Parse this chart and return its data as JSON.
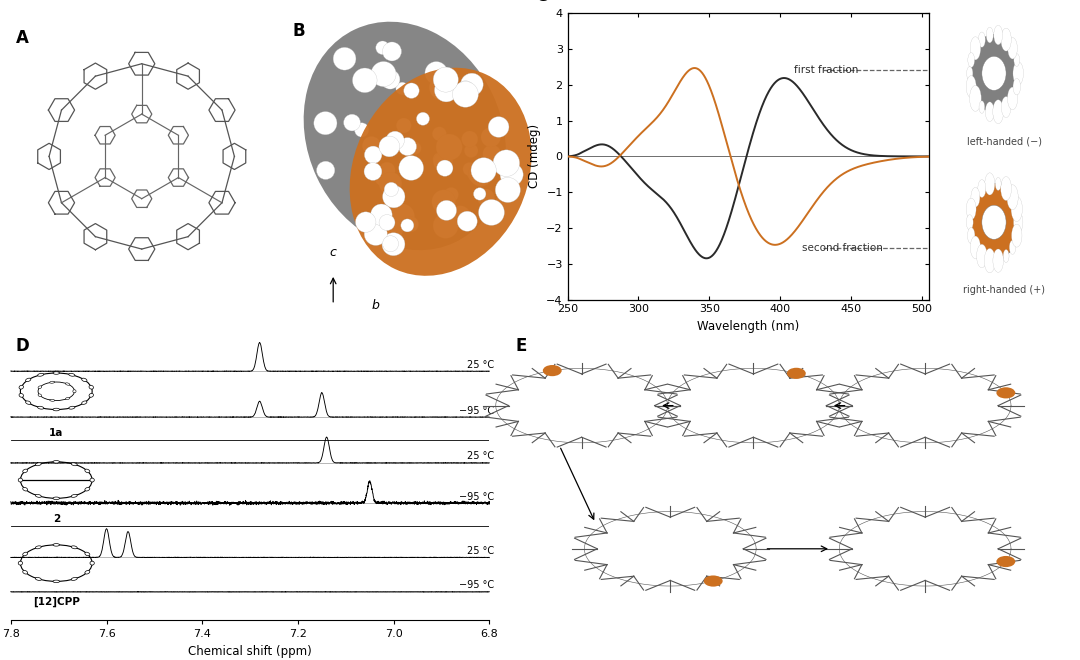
{
  "background_color": "#ffffff",
  "panel_labels": [
    "A",
    "B",
    "C",
    "D",
    "E"
  ],
  "panel_label_fontsize": 12,
  "panel_label_weight": "bold",
  "cd_xlabel": "Wavelength (nm)",
  "cd_ylabel": "CD (mdeg)",
  "cd_xlim": [
    250,
    505
  ],
  "cd_ylim": [
    -4,
    4
  ],
  "cd_yticks": [
    -4,
    -3,
    -2,
    -1,
    0,
    1,
    2,
    3,
    4
  ],
  "cd_xticks": [
    250,
    300,
    350,
    400,
    450,
    500
  ],
  "first_fraction_label": "first fraction",
  "second_fraction_label": "second fraction",
  "left_handed_label": "left-handed (−)",
  "right_handed_label": "right-handed (+)",
  "first_fraction_color": "#2a2a2a",
  "second_fraction_color": "#cc7020",
  "nmr_xlabel": "Chemical shift (ppm)",
  "nmr_xlim_min": 7.8,
  "nmr_xlim_max": 6.8,
  "nmr_label_1a": "1a",
  "nmr_label_2": "2",
  "nmr_label_cpp": "[12]CPP",
  "nmr_temp_25": "25 °C",
  "nmr_temp_95": "−95 °C",
  "gray_color": "#888888",
  "orange_color": "#cc7020",
  "dark_color": "#333333",
  "dashed_line_color": "#666666"
}
